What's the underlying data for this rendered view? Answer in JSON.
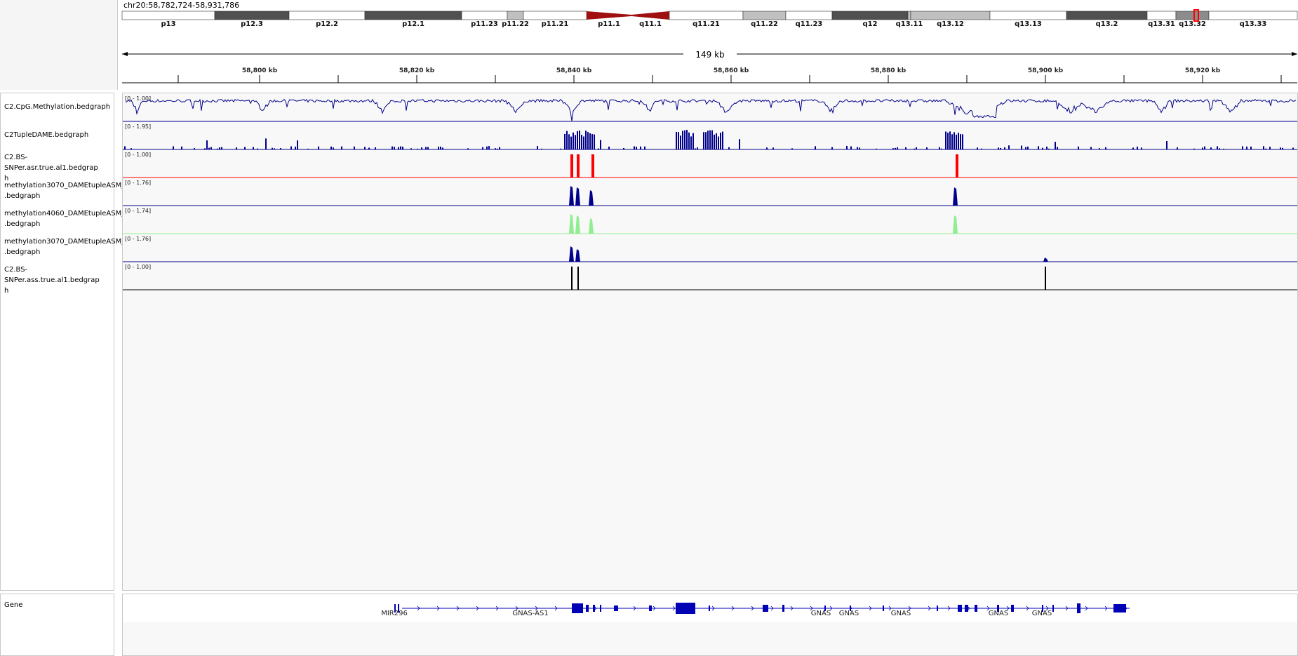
{
  "locus": "chr20:58,782,724-58,931,786",
  "span_label": "149 kb",
  "ruler_ticks": [
    "58,800 kb",
    "58,820 kb",
    "58,840 kb",
    "58,860 kb",
    "58,880 kb",
    "58,900 kb",
    "58,920 kb"
  ],
  "cytobands": [
    {
      "name": "p13",
      "stain": "white"
    },
    {
      "name": "p12.3",
      "stain": "dark"
    },
    {
      "name": "p12.2",
      "stain": "white"
    },
    {
      "name": "p12.1",
      "stain": "dark"
    },
    {
      "name": "p11.23",
      "stain": "white"
    },
    {
      "name": "p11.22",
      "stain": "light"
    },
    {
      "name": "p11.21",
      "stain": "white"
    },
    {
      "name": "p11.1",
      "stain": "centromere"
    },
    {
      "name": "q11.1",
      "stain": "centromere"
    },
    {
      "name": "q11.21",
      "stain": "white"
    },
    {
      "name": "q11.22",
      "stain": "light"
    },
    {
      "name": "q11.23",
      "stain": "white"
    },
    {
      "name": "q12",
      "stain": "dark"
    },
    {
      "name": "q13.11",
      "stain": "light"
    },
    {
      "name": "q13.12",
      "stain": "light"
    },
    {
      "name": "q13.13",
      "stain": "white"
    },
    {
      "name": "q13.2",
      "stain": "dark"
    },
    {
      "name": "q13.31",
      "stain": "white"
    },
    {
      "name": "q13.32",
      "stain": "mid"
    },
    {
      "name": "q13.33",
      "stain": "white"
    }
  ],
  "tracks": [
    {
      "name": "C2.CpG.Methylation.bedgraph",
      "range": "[0 - 1.00]",
      "color": "#00008b",
      "style": "line"
    },
    {
      "name": "C2TupleDAME.bedgraph",
      "range": "[0 - 1.95]",
      "color": "#00008b",
      "style": "bars"
    },
    {
      "name": "C2.BS-SNPer.asr.true.al1.bedgrap\nh",
      "range": "[0 - 1.00]",
      "color": "#ff0000",
      "style": "spikes"
    },
    {
      "name": "methylation3070_DAMEtupleASM_\n.bedgraph",
      "range": "[0 - 1.76]",
      "color": "#00008b",
      "style": "peaks"
    },
    {
      "name": "methylation4060_DAMEtupleASM_\n.bedgraph",
      "range": "[0 - 1.74]",
      "color": "#90ee90",
      "style": "peaks"
    },
    {
      "name": "methylation3070_DAMEtupleASM_\n.bedgraph",
      "range": "[0 - 1.76]",
      "color": "#00008b",
      "style": "peaks"
    },
    {
      "name": "C2.BS-SNPer.ass.true.al1.bedgrap\nh",
      "range": "[0 - 1.00]",
      "color": "#000000",
      "style": "spikes"
    }
  ],
  "gene_track": {
    "name": "Gene",
    "color": "#0000b4",
    "labels": [
      "MIR296",
      "GNAS-AS1",
      "GNAS",
      "GNAS",
      "GNAS",
      "GNAS",
      "GNAS"
    ]
  }
}
